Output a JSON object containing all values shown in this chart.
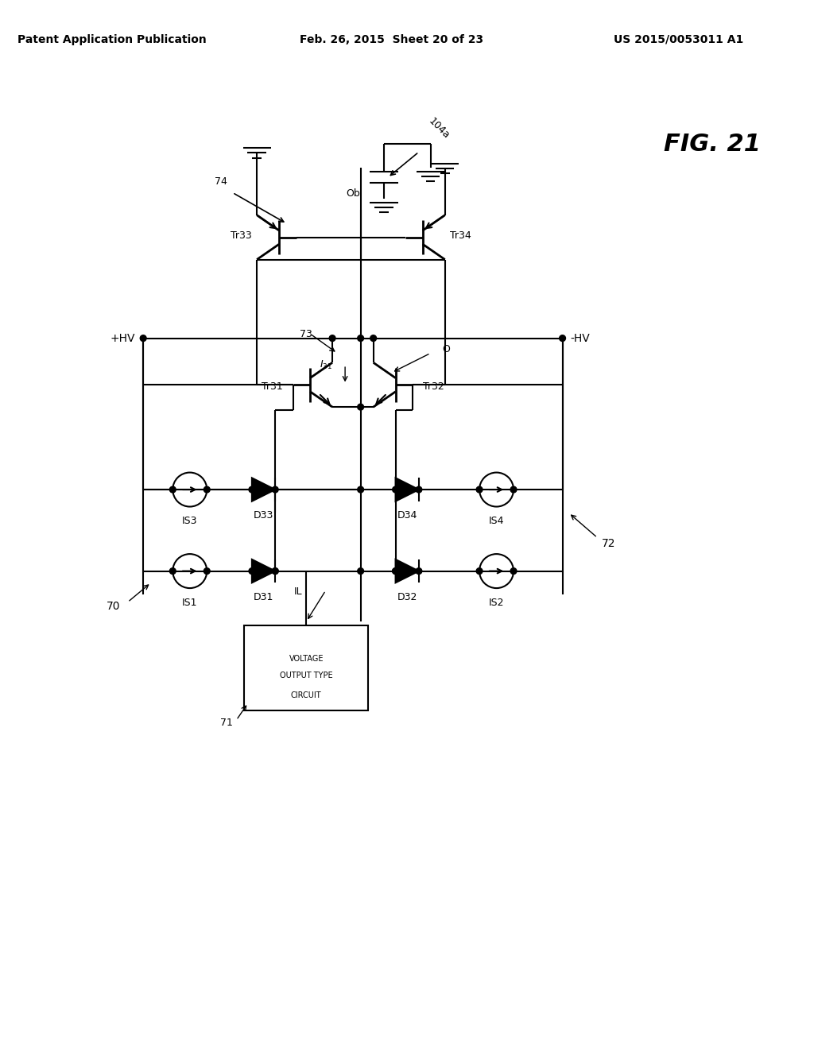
{
  "title_left": "Patent Application Publication",
  "title_mid": "Feb. 26, 2015  Sheet 20 of 23",
  "title_right": "US 2015/0053011 A1",
  "fig_label": "FIG. 21",
  "background_color": "#ffffff",
  "line_color": "#000000",
  "label_fontsize": 11,
  "small_fontsize": 9,
  "header_fontsize": 10
}
